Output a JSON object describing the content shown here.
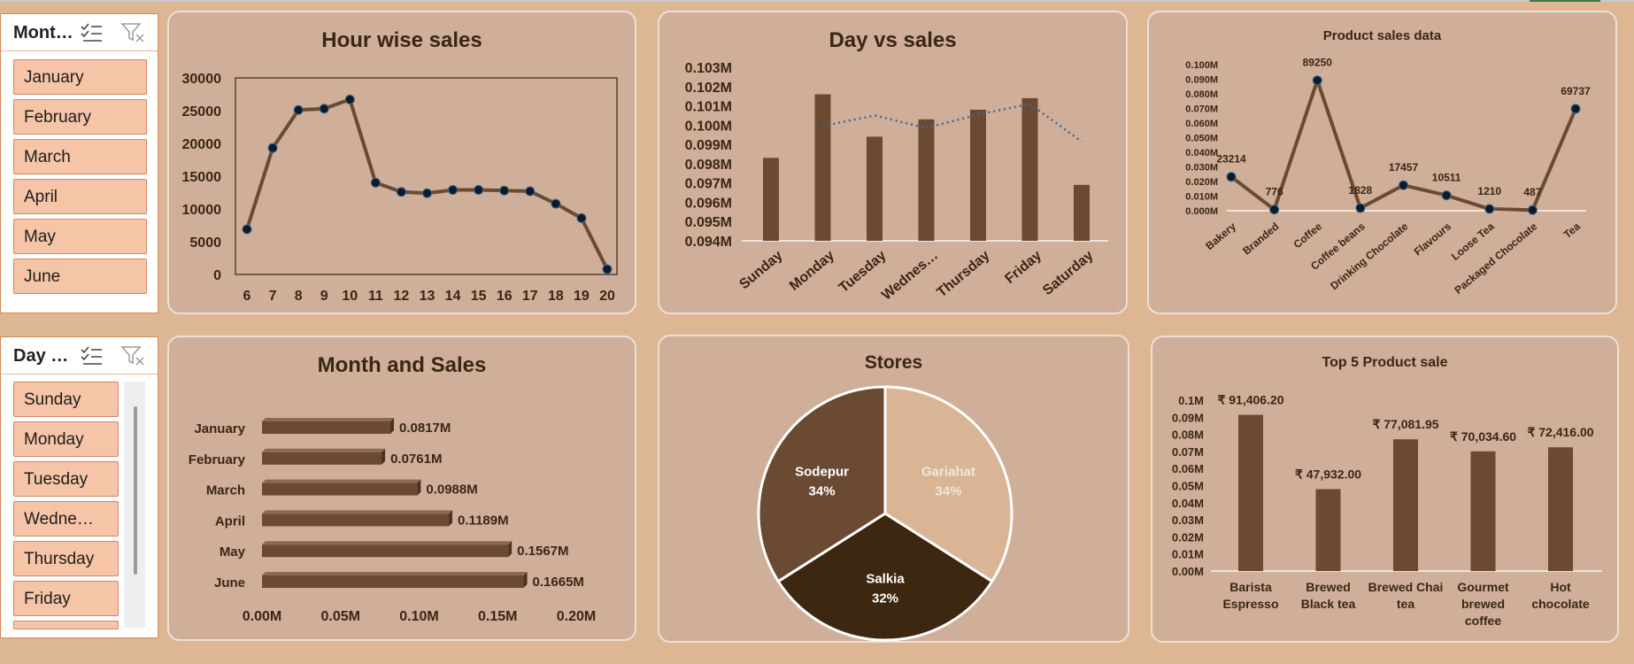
{
  "colors": {
    "background": "#ddb794",
    "panel": "#cfae9a",
    "bar": "#6b4a33",
    "slicer_item": "#f6c4a7",
    "pie_gariahat": "#d9b595",
    "pie_sodepur": "#6b4a33",
    "pie_salkia": "#3d2710",
    "trend_line": "#3d6a8a"
  },
  "slicer_month": {
    "title": "Mont…",
    "icons": [
      "multi-select-icon",
      "clear-filter-icon"
    ],
    "items": [
      "January",
      "February",
      "March",
      "April",
      "May",
      "June"
    ]
  },
  "slicer_day": {
    "title": "Day …",
    "icons": [
      "multi-select-icon",
      "clear-filter-icon"
    ],
    "items": [
      "Sunday",
      "Monday",
      "Tuesday",
      "Wedne…",
      "Thursday",
      "Friday"
    ]
  },
  "chart_data": [
    {
      "id": "hour",
      "type": "line",
      "title": "Hour wise sales",
      "categories": [
        "6",
        "7",
        "8",
        "9",
        "10",
        "11",
        "12",
        "13",
        "14",
        "15",
        "16",
        "17",
        "18",
        "19",
        "20"
      ],
      "values": [
        6900,
        19300,
        25100,
        25300,
        26700,
        14000,
        12600,
        12400,
        12900,
        12900,
        12800,
        12700,
        10800,
        8600,
        800
      ],
      "yticks": [
        "0",
        "5000",
        "10000",
        "15000",
        "20000",
        "25000",
        "30000"
      ],
      "ylim": [
        0,
        30000
      ]
    },
    {
      "id": "day",
      "type": "bar",
      "title": "Day vs sales",
      "categories": [
        "Sunday",
        "Monday",
        "Tuesday",
        "Wednes…",
        "Thursday",
        "Friday",
        "Saturday"
      ],
      "values": [
        0.0983,
        0.1016,
        0.0994,
        0.1003,
        0.1008,
        0.1014,
        0.0969
      ],
      "trendline": "moving average",
      "yticks": [
        "0.094M",
        "0.095M",
        "0.096M",
        "0.097M",
        "0.098M",
        "0.099M",
        "0.100M",
        "0.101M",
        "0.102M",
        "0.103M"
      ],
      "ylim": [
        0.094,
        0.103
      ]
    },
    {
      "id": "product",
      "type": "line",
      "title": "Product sales data",
      "categories": [
        "Bakery",
        "Branded",
        "Coffee",
        "Coffee beans",
        "Drinking Chocolate",
        "Flavours",
        "Loose Tea",
        "Packaged Chocolate",
        "Tea"
      ],
      "values": [
        23214,
        776,
        89250,
        1828,
        17457,
        10511,
        1210,
        487,
        69737
      ],
      "labels": [
        "23214",
        "776",
        "89250",
        "1828",
        "17457",
        "10511",
        "1210",
        "487",
        "69737"
      ],
      "yticks": [
        "0.000M",
        "0.010M",
        "0.020M",
        "0.030M",
        "0.040M",
        "0.050M",
        "0.060M",
        "0.070M",
        "0.080M",
        "0.090M",
        "0.100M"
      ],
      "ylim": [
        0,
        100000
      ]
    },
    {
      "id": "month",
      "type": "bar",
      "orientation": "horizontal",
      "title": "Month and Sales",
      "categories": [
        "January",
        "February",
        "March",
        "April",
        "May",
        "June"
      ],
      "values": [
        0.0817,
        0.0761,
        0.0988,
        0.1189,
        0.1567,
        0.1665
      ],
      "labels": [
        "0.0817M",
        "0.0761M",
        "0.0988M",
        "0.1189M",
        "0.1567M",
        "0.1665M"
      ],
      "xticks": [
        "0.00M",
        "0.05M",
        "0.10M",
        "0.15M",
        "0.20M"
      ],
      "xlim": [
        0,
        0.2
      ]
    },
    {
      "id": "stores",
      "type": "pie",
      "title": "Stores",
      "slices": [
        {
          "label": "Gariahat",
          "value": 34,
          "pct": "34%"
        },
        {
          "label": "Salkia",
          "value": 32,
          "pct": "32%"
        },
        {
          "label": "Sodepur",
          "value": 34,
          "pct": "34%"
        }
      ]
    },
    {
      "id": "top5",
      "type": "bar",
      "title": "Top 5 Product sale",
      "categories": [
        [
          "Barista",
          "Espresso"
        ],
        [
          "Brewed",
          "Black tea"
        ],
        [
          "Brewed Chai",
          "tea"
        ],
        [
          "Gourmet",
          "brewed",
          "coffee"
        ],
        [
          "Hot",
          "chocolate"
        ]
      ],
      "values": [
        91406.2,
        47932.0,
        77081.95,
        70034.6,
        72416.0
      ],
      "labels": [
        "₹ 91,406.20",
        "₹ 47,932.00",
        "₹ 77,081.95",
        "₹ 70,034.60",
        "₹ 72,416.00"
      ],
      "yticks": [
        "0.00M",
        "0.01M",
        "0.02M",
        "0.03M",
        "0.04M",
        "0.05M",
        "0.06M",
        "0.07M",
        "0.08M",
        "0.09M",
        "0.1M"
      ],
      "ylim": [
        0,
        100000
      ]
    }
  ]
}
